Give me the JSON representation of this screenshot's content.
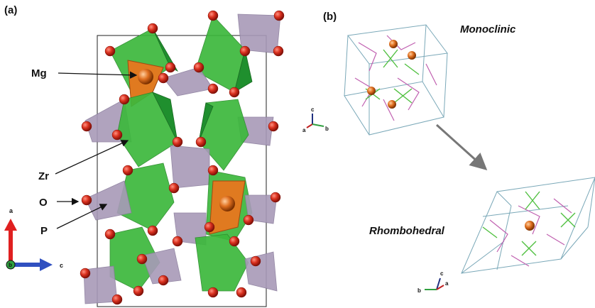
{
  "panel_a": {
    "label": "(a)",
    "annotations": [
      "Mg",
      "Zr",
      "O",
      "P"
    ],
    "axes": [
      "a",
      "b",
      "c"
    ]
  },
  "panel_b": {
    "label": "(b)",
    "structures": [
      "Monoclinic",
      "Rhombohedral"
    ],
    "axes_top": [
      "c",
      "a",
      "b"
    ],
    "axes_bottom": [
      "c",
      "a",
      "b"
    ]
  }
}
